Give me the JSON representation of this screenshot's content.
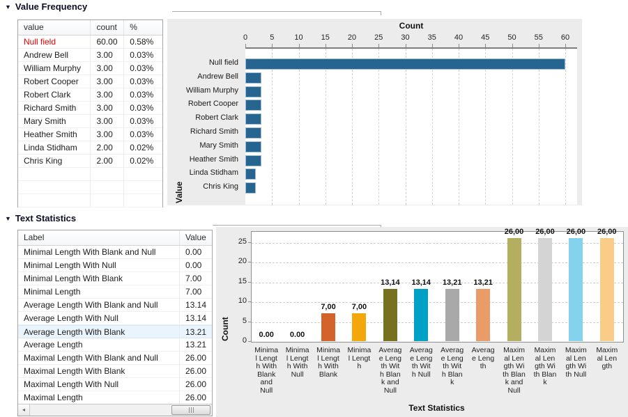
{
  "icons": {
    "collapse": "▼",
    "scroll_left_arrow": "◂"
  },
  "colors": {
    "null_field_text": "#e60000",
    "panel_background": "#ececec",
    "frequency_bar": "#26658f"
  },
  "value_frequency": {
    "section_title": "Value Frequency",
    "table": {
      "columns": [
        "value",
        "count",
        "%"
      ],
      "rows": [
        {
          "value": "Null field",
          "count": "60.00",
          "pct": "0.58%",
          "null_field": true
        },
        {
          "value": "Andrew Bell",
          "count": "3.00",
          "pct": "0.03%",
          "null_field": false
        },
        {
          "value": "William Murphy",
          "count": "3.00",
          "pct": "0.03%",
          "null_field": false
        },
        {
          "value": "Robert Cooper",
          "count": "3.00",
          "pct": "0.03%",
          "null_field": false
        },
        {
          "value": "Robert Clark",
          "count": "3.00",
          "pct": "0.03%",
          "null_field": false
        },
        {
          "value": "Richard Smith",
          "count": "3.00",
          "pct": "0.03%",
          "null_field": false
        },
        {
          "value": "Mary Smith",
          "count": "3.00",
          "pct": "0.03%",
          "null_field": false
        },
        {
          "value": "Heather Smith",
          "count": "3.00",
          "pct": "0.03%",
          "null_field": false
        },
        {
          "value": "Linda Stidham",
          "count": "2.00",
          "pct": "0.02%",
          "null_field": false
        },
        {
          "value": "Chris King",
          "count": "2.00",
          "pct": "0.02%",
          "null_field": false
        }
      ],
      "empty_row_count": 3
    },
    "chart_data": {
      "type": "bar",
      "orientation": "horizontal",
      "title": "Count",
      "ylabel": "Value",
      "categories": [
        "Null field",
        "Andrew Bell",
        "William Murphy",
        "Robert Cooper",
        "Robert Clark",
        "Richard Smith",
        "Mary Smith",
        "Heather Smith",
        "Linda Stidham",
        "Chris King"
      ],
      "values": [
        60,
        3,
        3,
        3,
        3,
        3,
        3,
        3,
        2,
        2
      ],
      "xlim": [
        0,
        60
      ],
      "xticks": [
        0,
        5,
        10,
        15,
        20,
        25,
        30,
        35,
        40,
        45,
        50,
        55,
        60
      ],
      "grid": "vertical-dashed",
      "legend": "none",
      "bar_color": "#26658f"
    }
  },
  "text_statistics": {
    "section_title": "Text Statistics",
    "table": {
      "columns": [
        "Label",
        "Value"
      ],
      "selected_row_index": 6,
      "rows": [
        {
          "label": "Minimal Length With Blank and Null",
          "value": "0.00"
        },
        {
          "label": "Minimal Length With Null",
          "value": "0.00"
        },
        {
          "label": "Minimal Length With Blank",
          "value": "7.00"
        },
        {
          "label": "Minimal Length",
          "value": "7.00"
        },
        {
          "label": "Average Length With Blank and Null",
          "value": "13.14"
        },
        {
          "label": "Average Length With Null",
          "value": "13.14"
        },
        {
          "label": "Average Length With Blank",
          "value": "13.21"
        },
        {
          "label": "Average Length",
          "value": "13.21"
        },
        {
          "label": "Maximal Length With Blank and Null",
          "value": "26.00"
        },
        {
          "label": "Maximal Length With Blank",
          "value": "26.00"
        },
        {
          "label": "Maximal Length With Null",
          "value": "26.00"
        },
        {
          "label": "Maximal Length",
          "value": "26.00"
        }
      ]
    },
    "chart_data": {
      "type": "bar",
      "orientation": "vertical",
      "ylabel": "Count",
      "xlabel": "Text Statistics",
      "categories": [
        "Minimal Length With Blank and Null",
        "Minimal Length With Null",
        "Minimal Length With Blank",
        "Minimal Length",
        "Average Length With Blank and Null",
        "Average Length With Null",
        "Average Length With Blank",
        "Average Length",
        "Maximal Length With Blank and Null",
        "Maximal Length With Blank",
        "Maximal Length With Null",
        "Maximal Length"
      ],
      "category_labels_wrapped": [
        "Minima\nl Lengt\nh With\nBlank\nand\nNull",
        "Minima\nl Lengt\nh With\nNull",
        "Minima\nl Lengt\nh With\nBlank",
        "Minima\nl Lengt\nh",
        "Averag\ne Leng\nth Wit\nh Blan\nk and\nNull",
        "Averag\ne Leng\nth Wit\nh Null",
        "Averag\ne Leng\nth Wit\nh Blan\nk",
        "Averag\ne Leng\nth",
        "Maxim\nal Len\ngth Wi\nth Blan\nk and\nNull",
        "Maxim\nal Len\ngth Wi\nth Blan\nk",
        "Maxim\nal Len\ngth Wi\nth Null",
        "Maxim\nal Len\ngth"
      ],
      "values": [
        0,
        0,
        7,
        7,
        13.14,
        13.14,
        13.21,
        13.21,
        26,
        26,
        26,
        26
      ],
      "value_labels": [
        "0.00",
        "0.00",
        "7,00",
        "7,00",
        "13,14",
        "13,14",
        "13,21",
        "13,21",
        "26,00",
        "26,00",
        "26,00",
        "26,00"
      ],
      "ylim": [
        0,
        27.7
      ],
      "yticks": [
        0,
        5,
        10,
        15,
        20,
        25
      ],
      "grid": "horizontal-dashed",
      "legend": "none",
      "bar_colors": [
        null,
        null,
        "#d4622b",
        "#f4a70a",
        "#76701f",
        "#00a1c5",
        "#a9a9a9",
        "#e99b68",
        "#b3ae60",
        "#d4d4d4",
        "#85d2ec",
        "#fbcc87"
      ]
    }
  }
}
